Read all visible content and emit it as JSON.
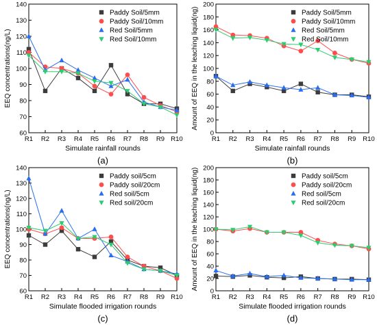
{
  "chart_data": [
    {
      "type": "line",
      "panel_label": "(a)",
      "xlabel": "Simulate rainfall rounds",
      "ylabel": "EEQ concentrations(ng/L)",
      "categories": [
        "R1",
        "R2",
        "R3",
        "R4",
        "R5",
        "R6",
        "R7",
        "R8",
        "R9",
        "R10"
      ],
      "ylim": [
        60,
        140
      ],
      "yticks": [
        60,
        70,
        80,
        90,
        100,
        110,
        120,
        130,
        140
      ],
      "legend_position": "top-right",
      "series": [
        {
          "name": "Paddy Soil/5mm",
          "marker": "square",
          "color": "#3c3c3c",
          "values": [
            112,
            86,
            100,
            94,
            86,
            102,
            84,
            78,
            78,
            75
          ]
        },
        {
          "name": "Paddy Soil/10mm",
          "marker": "circle",
          "color": "#ff4d4d",
          "values": [
            110,
            101,
            100,
            97,
            89,
            84,
            96,
            82,
            77,
            73
          ]
        },
        {
          "name": "Red Soil/5mm",
          "marker": "triangle",
          "color": "#2a6ef0",
          "values": [
            120,
            99,
            105,
            99,
            94,
            89,
            93,
            79,
            76,
            74
          ]
        },
        {
          "name": "Red Soil/10mm",
          "marker": "tri-down",
          "color": "#2ecc71",
          "values": [
            108,
            98,
            98,
            97,
            92,
            91,
            86,
            78,
            76,
            71
          ]
        }
      ]
    },
    {
      "type": "line",
      "panel_label": "(b)",
      "xlabel": "Simulate rainfall rounds",
      "ylabel": "Amount of EEQ in the leaching liquid(ng)",
      "categories": [
        "R1",
        "R2",
        "R3",
        "R4",
        "R5",
        "R6",
        "R7",
        "R8",
        "R9",
        "R10"
      ],
      "ylim": [
        0,
        200
      ],
      "yticks": [
        0,
        20,
        40,
        60,
        80,
        100,
        120,
        140,
        160,
        180,
        200
      ],
      "legend_position": "top-right",
      "series": [
        {
          "name": "Paddy Soil/5mm",
          "marker": "square",
          "color": "#3c3c3c",
          "values": [
            88,
            65,
            76,
            71,
            65,
            76,
            63,
            59,
            59,
            56
          ]
        },
        {
          "name": "Paddy Soil/10mm",
          "marker": "circle",
          "color": "#ff4d4d",
          "values": [
            165,
            152,
            151,
            147,
            135,
            127,
            143,
            124,
            114,
            108
          ]
        },
        {
          "name": "Red Soil/5mm",
          "marker": "triangle",
          "color": "#2a6ef0",
          "values": [
            88,
            74,
            79,
            74,
            70,
            67,
            70,
            59,
            58,
            55
          ]
        },
        {
          "name": "Red Soil/10mm",
          "marker": "tri-down",
          "color": "#2ecc71",
          "values": [
            160,
            147,
            148,
            144,
            138,
            137,
            129,
            117,
            114,
            110
          ]
        }
      ]
    },
    {
      "type": "line",
      "panel_label": "(c)",
      "xlabel": "Simulate flooded irrigation rounds",
      "ylabel": "EEQ concentrations(ng/L)",
      "categories": [
        "R1",
        "R2",
        "R3",
        "R4",
        "R5",
        "R6",
        "R7",
        "R8",
        "R9",
        "R10"
      ],
      "ylim": [
        60,
        140
      ],
      "yticks": [
        60,
        70,
        80,
        90,
        100,
        110,
        120,
        130,
        140
      ],
      "legend_position": "top-right",
      "series": [
        {
          "name": "Paddy soil/5cm",
          "marker": "square",
          "color": "#3c3c3c",
          "values": [
            96,
            90,
            99,
            87,
            82,
            92,
            80,
            76,
            75,
            70
          ]
        },
        {
          "name": "Paddy soil/20cm",
          "marker": "circle",
          "color": "#ff4d4d",
          "values": [
            100,
            97,
            101,
            94,
            94,
            95,
            82,
            76,
            73,
            68
          ]
        },
        {
          "name": "Red soil/5cm",
          "marker": "triangle",
          "color": "#2a6ef0",
          "values": [
            133,
            97,
            112,
            94,
            100,
            83,
            79,
            74,
            73,
            71
          ]
        },
        {
          "name": "Red soil/20cm",
          "marker": "tri-down",
          "color": "#2ecc71",
          "values": [
            101,
            99,
            104,
            94,
            95,
            90,
            78,
            74,
            73,
            70
          ]
        }
      ]
    },
    {
      "type": "line",
      "panel_label": "(d)",
      "xlabel": "Simulate flooded irrigation rounds",
      "ylabel": "Amount of EEQ in the leaching liquid(ng)",
      "categories": [
        "R1",
        "R2",
        "R3",
        "R4",
        "R5",
        "R6",
        "R7",
        "R8",
        "R9",
        "R10"
      ],
      "ylim": [
        0,
        200
      ],
      "yticks": [
        0,
        20,
        40,
        60,
        80,
        100,
        120,
        140,
        160,
        180,
        200
      ],
      "legend_position": "top-right",
      "series": [
        {
          "name": "Paddy soil/5cm",
          "marker": "square",
          "color": "#3c3c3c",
          "values": [
            24,
            23,
            25,
            22,
            21,
            23,
            20,
            19,
            19,
            18
          ]
        },
        {
          "name": "Paddy soil/20cm",
          "marker": "circle",
          "color": "#ff4d4d",
          "values": [
            100,
            97,
            101,
            95,
            95,
            95,
            82,
            76,
            73,
            68
          ]
        },
        {
          "name": "Red soil/5cm",
          "marker": "triangle",
          "color": "#2a6ef0",
          "values": [
            33,
            24,
            28,
            23,
            25,
            21,
            20,
            19,
            18,
            18
          ]
        },
        {
          "name": "Red soil/20cm",
          "marker": "tri-down",
          "color": "#2ecc71",
          "values": [
            100,
            99,
            104,
            95,
            95,
            90,
            78,
            74,
            73,
            70
          ]
        }
      ]
    }
  ]
}
